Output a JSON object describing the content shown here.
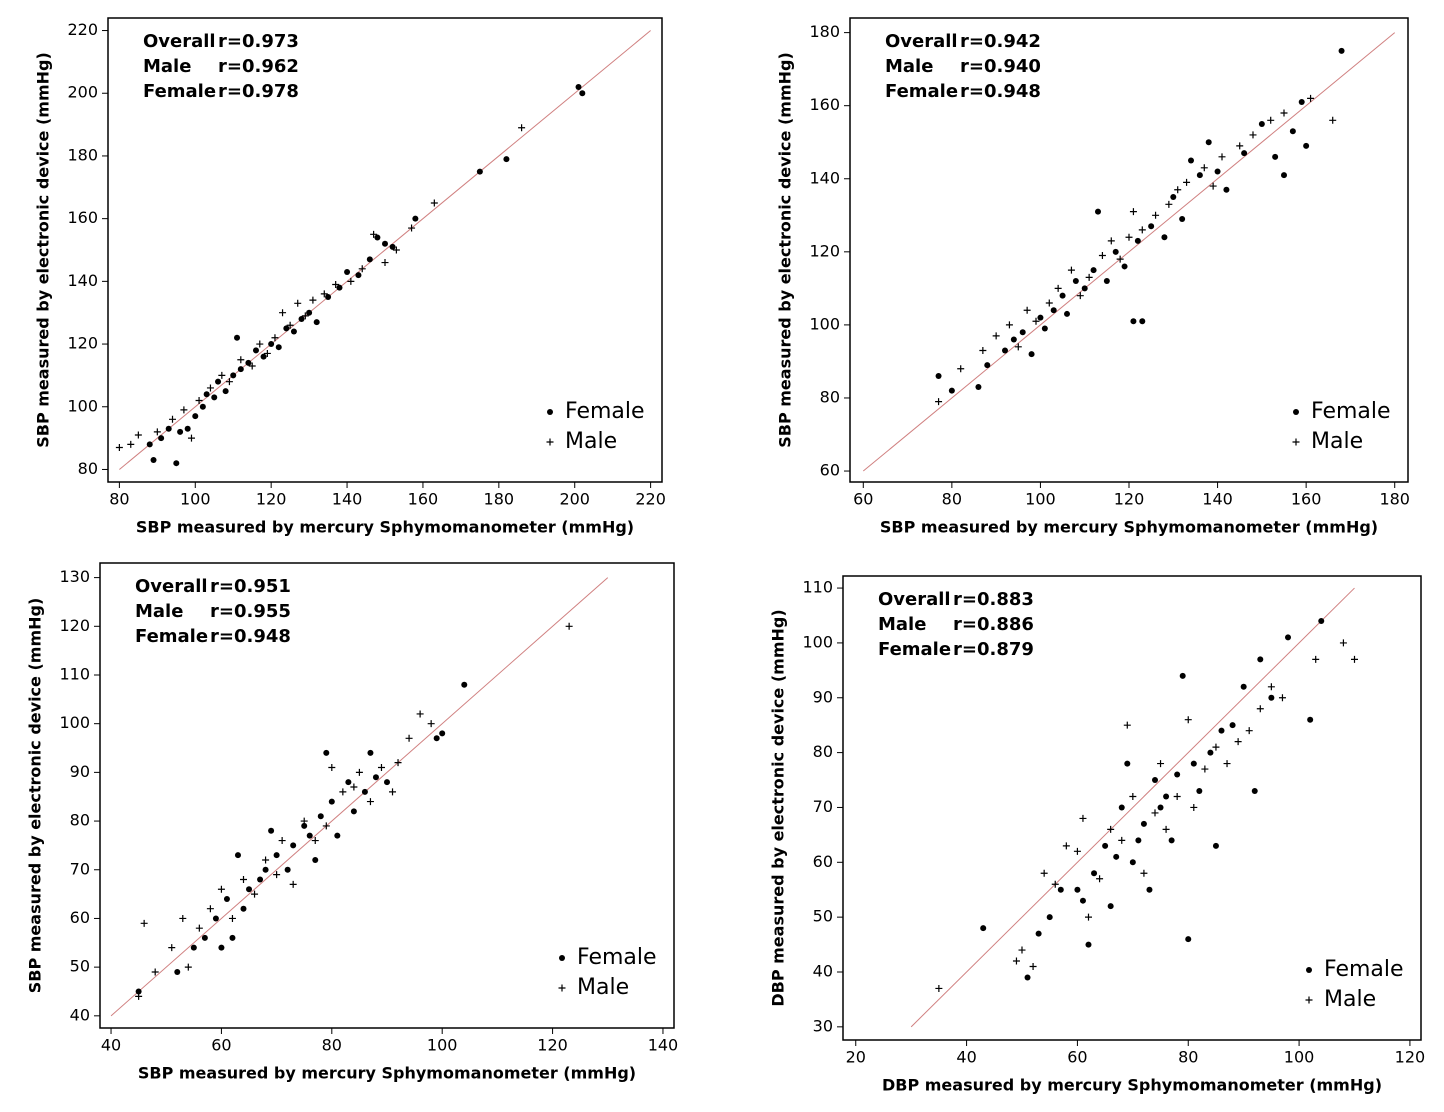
{
  "chart_data": [
    {
      "type": "scatter",
      "xlabel": "SBP measured by mercury Sphymomanometer (mmHg)",
      "ylabel": "SBP measured by electronic device (mmHg)",
      "stats": [
        {
          "label": "Overall",
          "value": "r=0.973"
        },
        {
          "label": "Male",
          "value": "r=0.962"
        },
        {
          "label": "Female",
          "value": "r=0.978"
        }
      ],
      "xlim": [
        77,
        223
      ],
      "ylim": [
        76,
        224
      ],
      "xticks": [
        80,
        100,
        120,
        140,
        160,
        180,
        200,
        220
      ],
      "yticks": [
        80,
        100,
        120,
        140,
        160,
        180,
        200,
        220
      ],
      "reference_line": {
        "x": [
          80,
          220
        ],
        "y": [
          80,
          220
        ],
        "color": "#d08080"
      },
      "series": [
        {
          "name": "Female",
          "marker": "dot",
          "color": "#000000",
          "x": [
            88,
            89,
            91,
            93,
            95,
            96,
            98,
            100,
            102,
            103,
            105,
            106,
            108,
            110,
            111,
            112,
            114,
            116,
            118,
            120,
            122,
            124,
            126,
            128,
            130,
            132,
            135,
            138,
            140,
            143,
            146,
            148,
            150,
            152,
            158,
            175,
            182,
            201,
            202
          ],
          "y": [
            88,
            83,
            90,
            93,
            82,
            92,
            93,
            97,
            100,
            104,
            103,
            108,
            105,
            110,
            122,
            112,
            114,
            118,
            116,
            120,
            119,
            125,
            124,
            128,
            130,
            127,
            135,
            138,
            143,
            142,
            147,
            154,
            152,
            151,
            160,
            175,
            179,
            202,
            200
          ]
        },
        {
          "name": "Male",
          "marker": "plus",
          "color": "#000000",
          "x": [
            80,
            83,
            85,
            90,
            94,
            97,
            99,
            101,
            104,
            107,
            109,
            112,
            115,
            117,
            119,
            121,
            123,
            125,
            127,
            129,
            131,
            134,
            137,
            141,
            144,
            147,
            150,
            153,
            157,
            163,
            186
          ],
          "y": [
            87,
            88,
            91,
            92,
            96,
            99,
            90,
            102,
            106,
            110,
            108,
            115,
            113,
            120,
            117,
            122,
            130,
            126,
            133,
            129,
            134,
            136,
            139,
            140,
            144,
            155,
            146,
            150,
            157,
            165,
            189
          ]
        }
      ]
    },
    {
      "type": "scatter",
      "xlabel": "SBP measured by mercury Sphymomanometer (mmHg)",
      "ylabel": "SBP measured by electronic device (mmHg)",
      "stats": [
        {
          "label": "Overall",
          "value": "r=0.942"
        },
        {
          "label": "Male",
          "value": "r=0.940"
        },
        {
          "label": "Female",
          "value": "r=0.948"
        }
      ],
      "xlim": [
        57,
        183
      ],
      "ylim": [
        57,
        184
      ],
      "xticks": [
        60,
        80,
        100,
        120,
        140,
        160,
        180
      ],
      "yticks": [
        60,
        80,
        100,
        120,
        140,
        160,
        180
      ],
      "reference_line": {
        "x": [
          60,
          180
        ],
        "y": [
          60,
          180
        ],
        "color": "#d08080"
      },
      "series": [
        {
          "name": "Female",
          "marker": "dot",
          "color": "#000000",
          "x": [
            77,
            80,
            86,
            88,
            92,
            94,
            96,
            98,
            100,
            101,
            103,
            105,
            106,
            108,
            110,
            112,
            113,
            115,
            117,
            119,
            121,
            122,
            123,
            125,
            128,
            130,
            132,
            134,
            136,
            138,
            140,
            142,
            146,
            150,
            153,
            155,
            157,
            159,
            160,
            168
          ],
          "y": [
            86,
            82,
            83,
            89,
            93,
            96,
            98,
            92,
            102,
            99,
            104,
            108,
            103,
            112,
            110,
            115,
            131,
            112,
            120,
            116,
            101,
            123,
            101,
            127,
            124,
            135,
            129,
            145,
            141,
            150,
            142,
            137,
            147,
            155,
            146,
            141,
            153,
            161,
            149,
            175
          ]
        },
        {
          "name": "Male",
          "marker": "plus",
          "color": "#000000",
          "x": [
            77,
            82,
            87,
            90,
            93,
            95,
            97,
            99,
            102,
            104,
            107,
            109,
            111,
            114,
            116,
            118,
            120,
            121,
            123,
            126,
            129,
            131,
            133,
            137,
            139,
            141,
            145,
            148,
            152,
            155,
            161,
            166
          ],
          "y": [
            79,
            88,
            93,
            97,
            100,
            94,
            104,
            101,
            106,
            110,
            115,
            108,
            113,
            119,
            123,
            118,
            124,
            131,
            126,
            130,
            133,
            137,
            139,
            143,
            138,
            146,
            149,
            152,
            156,
            158,
            162,
            156
          ]
        }
      ]
    },
    {
      "type": "scatter",
      "xlabel": "SBP measured by mercury Sphymomanometer (mmHg)",
      "ylabel": "SBP measured by electronic device (mmHg)",
      "stats": [
        {
          "label": "Overall",
          "value": "r=0.951"
        },
        {
          "label": "Male",
          "value": "r=0.955"
        },
        {
          "label": "Female",
          "value": "r=0.948"
        }
      ],
      "xlim": [
        38,
        142
      ],
      "ylim": [
        37.5,
        133
      ],
      "xticks": [
        40,
        60,
        80,
        100,
        120,
        140
      ],
      "yticks": [
        40,
        50,
        60,
        70,
        80,
        90,
        100,
        110,
        120,
        130
      ],
      "reference_line": {
        "x": [
          40,
          130
        ],
        "y": [
          40,
          130
        ],
        "color": "#d08080"
      },
      "series": [
        {
          "name": "Female",
          "marker": "dot",
          "color": "#000000",
          "x": [
            45,
            52,
            55,
            57,
            59,
            60,
            61,
            62,
            63,
            64,
            65,
            67,
            68,
            69,
            70,
            72,
            73,
            75,
            76,
            77,
            78,
            79,
            80,
            81,
            83,
            84,
            86,
            87,
            88,
            90,
            99,
            100,
            104
          ],
          "y": [
            45,
            49,
            54,
            56,
            60,
            54,
            64,
            56,
            73,
            62,
            66,
            68,
            70,
            78,
            73,
            70,
            75,
            79,
            77,
            72,
            81,
            94,
            84,
            77,
            88,
            82,
            86,
            94,
            89,
            88,
            97,
            98,
            108
          ]
        },
        {
          "name": "Male",
          "marker": "plus",
          "color": "#000000",
          "x": [
            45,
            46,
            48,
            51,
            53,
            54,
            56,
            58,
            60,
            62,
            64,
            66,
            68,
            70,
            71,
            73,
            75,
            77,
            79,
            80,
            82,
            84,
            85,
            87,
            89,
            91,
            92,
            94,
            96,
            98,
            123
          ],
          "y": [
            44,
            59,
            49,
            54,
            60,
            50,
            58,
            62,
            66,
            60,
            68,
            65,
            72,
            69,
            76,
            67,
            80,
            76,
            79,
            91,
            86,
            87,
            90,
            84,
            91,
            86,
            92,
            97,
            102,
            100,
            120
          ]
        }
      ]
    },
    {
      "type": "scatter",
      "xlabel": "DBP measured by mercury Sphymomanometer (mmHg)",
      "ylabel": "DBP measured by electronic device (mmHg)",
      "stats": [
        {
          "label": "Overall",
          "value": "r=0.883"
        },
        {
          "label": "Male",
          "value": "r=0.886"
        },
        {
          "label": "Female",
          "value": "r=0.879"
        }
      ],
      "xlim": [
        17.7,
        122
      ],
      "ylim": [
        27.6,
        112.2
      ],
      "xticks": [
        20,
        40,
        60,
        80,
        100,
        120
      ],
      "yticks": [
        30,
        40,
        50,
        60,
        70,
        80,
        90,
        100,
        110
      ],
      "reference_line": {
        "x": [
          30,
          110
        ],
        "y": [
          30,
          110
        ],
        "color": "#d08080"
      },
      "series": [
        {
          "name": "Female",
          "marker": "dot",
          "color": "#000000",
          "x": [
            43,
            51,
            53,
            55,
            57,
            60,
            61,
            62,
            63,
            65,
            66,
            67,
            68,
            69,
            70,
            71,
            72,
            73,
            74,
            75,
            76,
            77,
            78,
            79,
            80,
            81,
            82,
            84,
            85,
            86,
            88,
            90,
            92,
            93,
            95,
            98,
            102,
            104
          ],
          "y": [
            48,
            39,
            47,
            50,
            55,
            55,
            53,
            45,
            58,
            63,
            52,
            61,
            70,
            78,
            60,
            64,
            67,
            55,
            75,
            70,
            72,
            64,
            76,
            94,
            46,
            78,
            73,
            80,
            63,
            84,
            85,
            92,
            73,
            97,
            90,
            101,
            86,
            104
          ]
        },
        {
          "name": "Male",
          "marker": "plus",
          "color": "#000000",
          "x": [
            35,
            49,
            50,
            52,
            54,
            56,
            58,
            60,
            61,
            62,
            64,
            66,
            68,
            69,
            70,
            72,
            74,
            75,
            76,
            78,
            80,
            81,
            83,
            85,
            87,
            89,
            91,
            93,
            95,
            97,
            103,
            108,
            110
          ],
          "y": [
            37,
            42,
            44,
            41,
            58,
            56,
            63,
            62,
            68,
            50,
            57,
            66,
            64,
            85,
            72,
            58,
            69,
            78,
            66,
            72,
            86,
            70,
            77,
            81,
            78,
            82,
            84,
            88,
            92,
            90,
            97,
            100,
            97
          ]
        }
      ]
    }
  ]
}
